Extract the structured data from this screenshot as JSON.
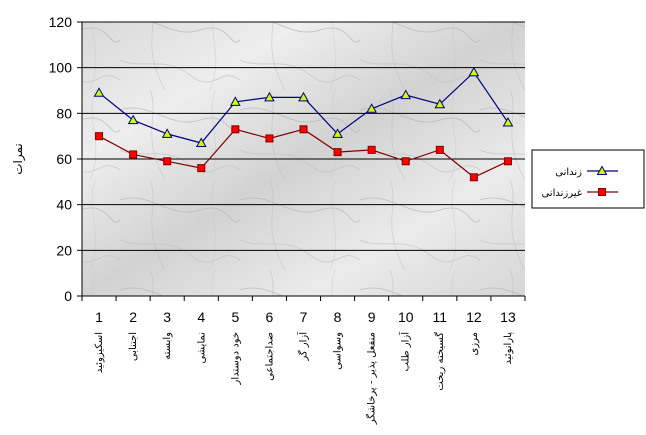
{
  "chart_data": {
    "type": "line",
    "title": "",
    "xlabel": "",
    "ylabel": "نمرات",
    "ylim": [
      0,
      120
    ],
    "yticks": [
      0,
      20,
      40,
      60,
      80,
      100,
      120
    ],
    "grid": true,
    "legend_position": "right",
    "x": [
      1,
      2,
      3,
      4,
      5,
      6,
      7,
      8,
      9,
      10,
      11,
      12,
      13
    ],
    "categories": [
      "اسکیزوئید",
      "اجتنابی",
      "وابسته",
      "نمایشی",
      "خود دوستدار",
      "ضداجتماعی",
      "آزار گر",
      "وسواسی",
      "منفعل پذیر - پرخاشگر",
      "آزار طلب",
      "گسیخته ریخت",
      "مرزی",
      "پارانوئید"
    ],
    "series": [
      {
        "name": "زندانی",
        "color": "#000080",
        "marker": "triangle",
        "marker_color": "#ccff00",
        "values": [
          89,
          77,
          71,
          67,
          85,
          87,
          87,
          71,
          82,
          88,
          84,
          98,
          76
        ]
      },
      {
        "name": "غیرزندانی",
        "color": "#800000",
        "marker": "square",
        "marker_color": "#ff0000",
        "values": [
          70,
          62,
          59,
          56,
          73,
          69,
          73,
          63,
          64,
          59,
          64,
          52,
          59
        ]
      }
    ]
  }
}
